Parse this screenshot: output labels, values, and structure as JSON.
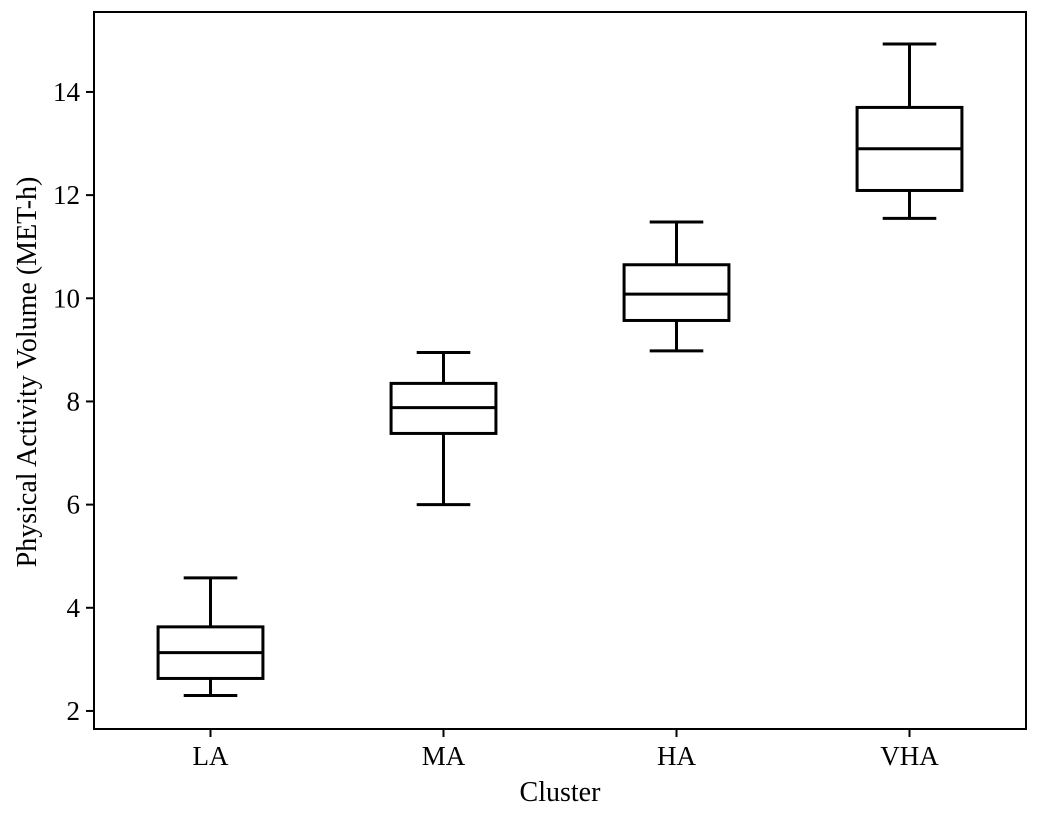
{
  "chart_data": {
    "type": "box",
    "xlabel": "Cluster",
    "ylabel": "Physical Activity Volume (MET-h)",
    "categories": [
      "LA",
      "MA",
      "HA",
      "VHA"
    ],
    "boxes": [
      {
        "category": "LA",
        "whisker_low": 2.3,
        "q1": 2.63,
        "median": 3.13,
        "q3": 3.63,
        "whisker_high": 4.58
      },
      {
        "category": "MA",
        "whisker_low": 6.0,
        "q1": 7.38,
        "median": 7.88,
        "q3": 8.35,
        "whisker_high": 8.95
      },
      {
        "category": "HA",
        "whisker_low": 8.98,
        "q1": 9.57,
        "median": 10.08,
        "q3": 10.65,
        "whisker_high": 11.48
      },
      {
        "category": "VHA",
        "whisker_low": 11.55,
        "q1": 12.09,
        "median": 12.9,
        "q3": 13.7,
        "whisker_high": 14.93
      }
    ],
    "ylim": [
      1.65,
      15.55
    ],
    "yticks": [
      2,
      4,
      6,
      8,
      10,
      12,
      14
    ],
    "grid": false,
    "legend": "none"
  }
}
